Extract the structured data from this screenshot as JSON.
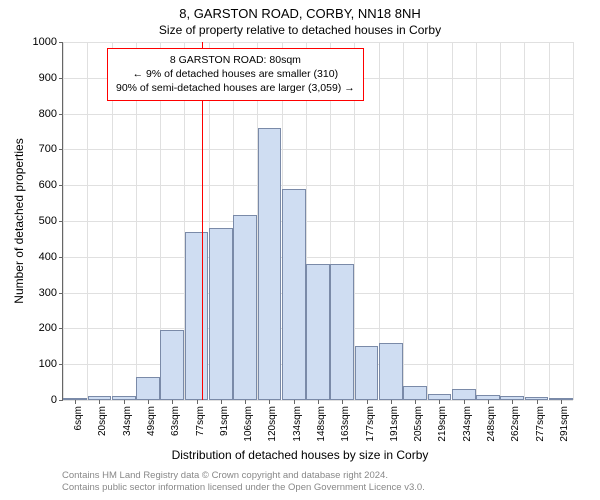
{
  "title_line1": "8, GARSTON ROAD, CORBY, NN18 8NH",
  "title_line2": "Size of property relative to detached houses in Corby",
  "y_axis_label": "Number of detached properties",
  "x_axis_label": "Distribution of detached houses by size in Corby",
  "footer_line1": "Contains HM Land Registry data © Crown copyright and database right 2024.",
  "footer_line2": "Contains public sector information licensed under the Open Government Licence v3.0.",
  "footer_color": "#888888",
  "chart": {
    "type": "histogram",
    "ylim": [
      0,
      1000
    ],
    "ytick_step": 100,
    "yticks": [
      0,
      100,
      200,
      300,
      400,
      500,
      600,
      700,
      800,
      900,
      1000
    ],
    "x_tick_labels": [
      "6sqm",
      "20sqm",
      "34sqm",
      "49sqm",
      "63sqm",
      "77sqm",
      "91sqm",
      "106sqm",
      "120sqm",
      "134sqm",
      "148sqm",
      "163sqm",
      "177sqm",
      "191sqm",
      "205sqm",
      "219sqm",
      "234sqm",
      "248sqm",
      "262sqm",
      "277sqm",
      "291sqm"
    ],
    "bar_values": [
      5,
      12,
      10,
      65,
      195,
      470,
      480,
      518,
      760,
      590,
      380,
      380,
      150,
      160,
      40,
      18,
      30,
      15,
      10,
      8,
      5
    ],
    "bar_fill": "#cfddf2",
    "bar_stroke": "#7a8aa8",
    "grid_color": "#e0e0e0",
    "background": "#ffffff",
    "label_fontsize": 12,
    "tick_fontsize": 11
  },
  "highlight": {
    "vline_color": "#ff0000",
    "vline_at_sqm": 80,
    "box_border": "#ff0000",
    "box_bg": "#ffffff",
    "lines": [
      "8 GARSTON ROAD: 80sqm",
      "← 9% of detached houses are smaller (310)",
      "90% of semi-detached houses are larger (3,059) →"
    ]
  }
}
